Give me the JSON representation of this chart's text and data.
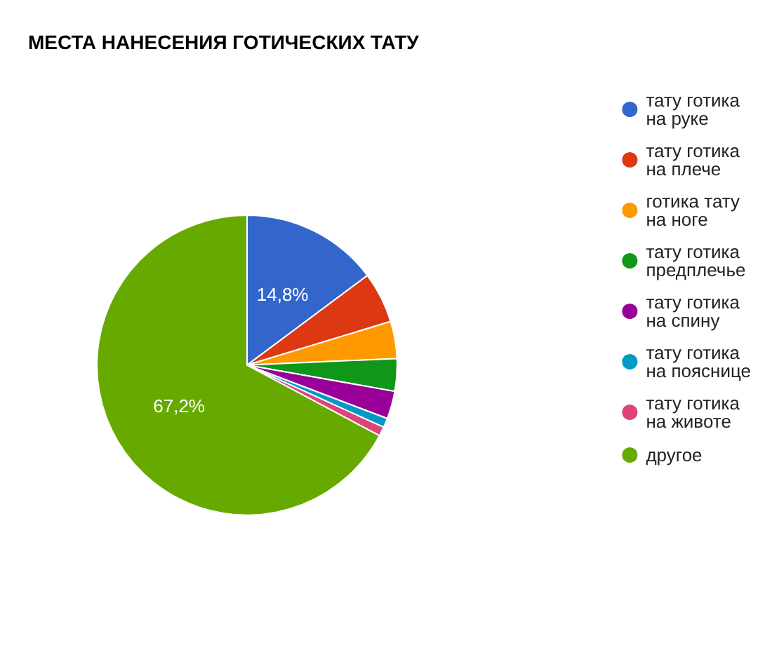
{
  "chart_data": {
    "type": "pie",
    "title": "МЕСТА НАНЕСЕНИЯ ГОТИЧЕСКИХ ТАТУ",
    "categories": [
      "тату готика на руке",
      "тату готика на плече",
      "готика тату на ноге",
      "тату готика предплечье",
      "тату готика на спину",
      "тату готика на пояснице",
      "тату готика на животе",
      "другое"
    ],
    "values": [
      14.8,
      5.5,
      4,
      3.5,
      3,
      1,
      1,
      67.2
    ],
    "colors": [
      "#3366cc",
      "#dc3912",
      "#ff9900",
      "#109618",
      "#990099",
      "#0099c6",
      "#dd4477",
      "#66aa00"
    ],
    "value_labels": [
      "14,8%",
      null,
      null,
      null,
      null,
      null,
      null,
      "67,2%"
    ],
    "legend": "right"
  }
}
